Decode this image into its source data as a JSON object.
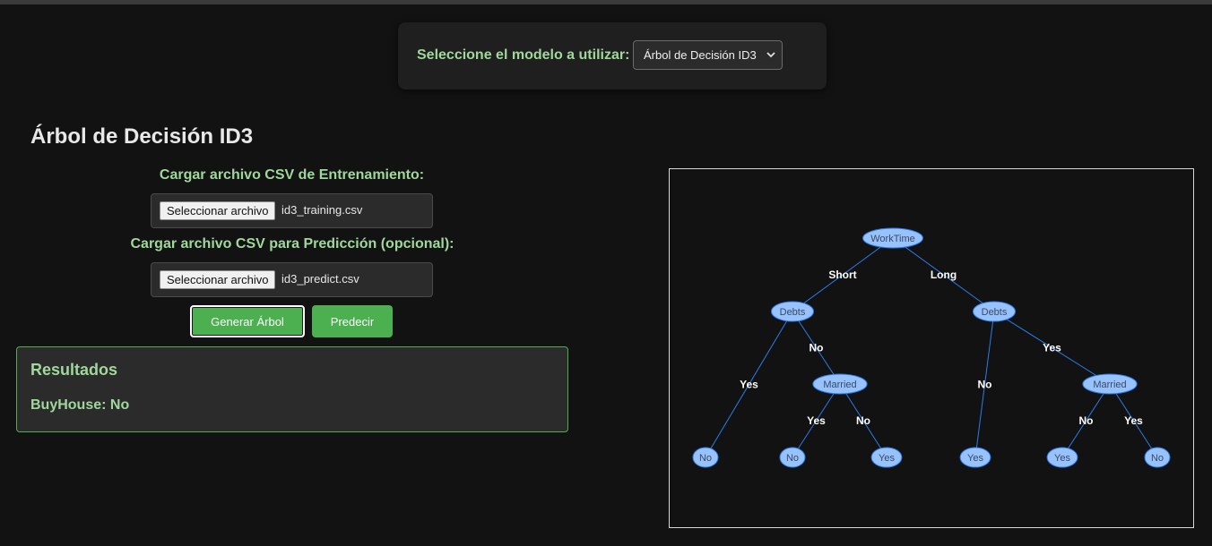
{
  "model_selector": {
    "label": "Seleccione el modelo a utilizar:",
    "selected": "Árbol de Decisión ID3"
  },
  "page_title": "Árbol de Decisión ID3",
  "training": {
    "label": "Cargar archivo CSV de Entrenamiento:",
    "button": "Seleccionar archivo",
    "file_name": "id3_training.csv"
  },
  "prediction": {
    "label": "Cargar archivo CSV para Predicción (opcional):",
    "button": "Seleccionar archivo",
    "file_name": "id3_predict.csv"
  },
  "actions": {
    "generate": "Generar Árbol",
    "predict": "Predecir"
  },
  "results": {
    "title": "Resultados",
    "text": "BuyHouse: No"
  },
  "tree": {
    "colors": {
      "node_fill": "#97c2fc",
      "node_stroke": "#2b7ce9",
      "edge": "#2b7ce9"
    },
    "nodes": [
      {
        "id": "n0",
        "label": "WorkTime"
      },
      {
        "id": "n1",
        "label": "Debts"
      },
      {
        "id": "n2",
        "label": "Debts"
      },
      {
        "id": "n3",
        "label": "No"
      },
      {
        "id": "n4",
        "label": "Married"
      },
      {
        "id": "n5",
        "label": "No"
      },
      {
        "id": "n6",
        "label": "Yes"
      },
      {
        "id": "n7",
        "label": "Yes"
      },
      {
        "id": "n8",
        "label": "Married"
      },
      {
        "id": "n9",
        "label": "Yes"
      },
      {
        "id": "n10",
        "label": "No"
      }
    ],
    "edges": [
      {
        "from": "n0",
        "to": "n1",
        "label": "Short"
      },
      {
        "from": "n0",
        "to": "n2",
        "label": "Long"
      },
      {
        "from": "n1",
        "to": "n3",
        "label": "Yes"
      },
      {
        "from": "n1",
        "to": "n4",
        "label": "No"
      },
      {
        "from": "n4",
        "to": "n5",
        "label": "Yes"
      },
      {
        "from": "n4",
        "to": "n6",
        "label": "No"
      },
      {
        "from": "n2",
        "to": "n7",
        "label": "No"
      },
      {
        "from": "n2",
        "to": "n8",
        "label": "Yes"
      },
      {
        "from": "n8",
        "to": "n9",
        "label": "No"
      },
      {
        "from": "n8",
        "to": "n10",
        "label": "Yes"
      }
    ]
  }
}
